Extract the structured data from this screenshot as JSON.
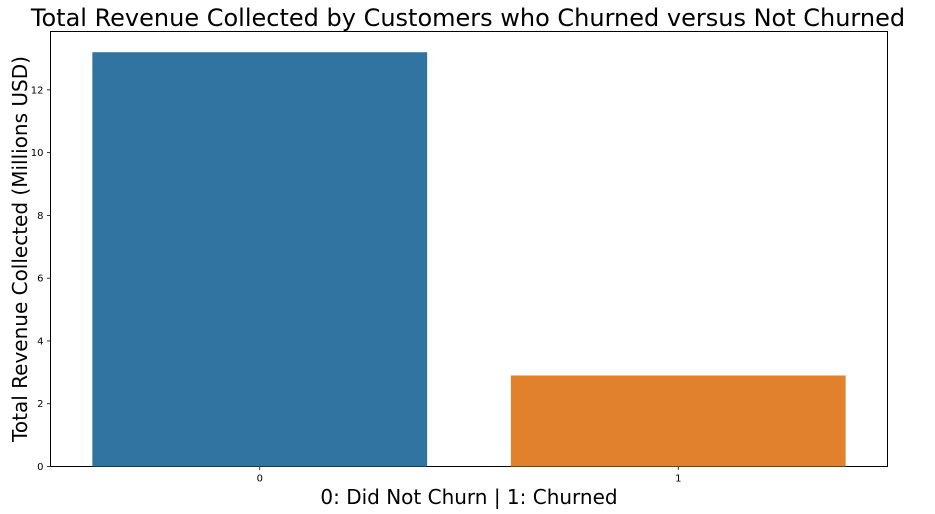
{
  "chart_data": {
    "type": "bar",
    "title": "Total Revenue Collected by Customers who Churned versus Not Churned",
    "xlabel": "0: Did Not Churn | 1: Churned",
    "ylabel": "Total Revenue Collected (Millions USD)",
    "categories": [
      "0",
      "1"
    ],
    "values": [
      13.2,
      2.9
    ],
    "colors": [
      "#3274a1",
      "#e1812c"
    ],
    "ylim": [
      0,
      13.86
    ],
    "yticks": [
      0,
      2,
      4,
      6,
      8,
      10,
      12
    ],
    "grid": false,
    "legend": "none"
  }
}
